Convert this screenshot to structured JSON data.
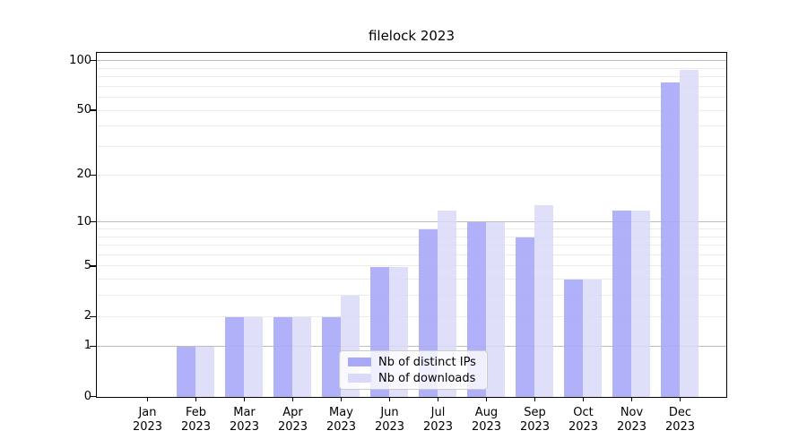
{
  "title": "filelock 2023",
  "chart_data": {
    "type": "bar",
    "title": "filelock 2023",
    "categories": [
      "Jan 2023",
      "Feb 2023",
      "Mar 2023",
      "Apr 2023",
      "May 2023",
      "Jun 2023",
      "Jul 2023",
      "Aug 2023",
      "Sep 2023",
      "Oct 2023",
      "Nov 2023",
      "Dec 2023"
    ],
    "x_tick_line1": [
      "Jan",
      "Feb",
      "Mar",
      "Apr",
      "May",
      "Jun",
      "Jul",
      "Aug",
      "Sep",
      "Oct",
      "Nov",
      "Dec"
    ],
    "x_tick_line2": "2023",
    "series": [
      {
        "name": "Nb of distinct IPs",
        "color": "#a9a9f9",
        "values": [
          0,
          1,
          2,
          2,
          2,
          5,
          9,
          10,
          8,
          4,
          12,
          74
        ]
      },
      {
        "name": "Nb of downloads",
        "color": "#d9d9f9",
        "values": [
          0,
          1,
          2,
          2,
          3,
          5,
          12,
          10,
          13,
          4,
          12,
          88
        ]
      }
    ],
    "xlabel": "",
    "ylabel": "",
    "yscale": "log10(1+v) (symlog-like: 0,1,2,5,10,20,50,100)",
    "y_ticks": [
      0,
      1,
      2,
      5,
      10,
      20,
      50,
      100
    ],
    "y_major_gridlines": [
      1,
      10,
      100
    ],
    "y_minor_gridlines": [
      2,
      3,
      4,
      5,
      6,
      7,
      8,
      9,
      20,
      30,
      40,
      50,
      60,
      70,
      80,
      90
    ],
    "ylim": [
      0,
      110
    ],
    "grid": "horizontal",
    "legend_position": "lower center, inside plot"
  },
  "colors": {
    "bar_distinct_ips": "#a9a9f9",
    "bar_downloads": "#d9d9f9",
    "major_gridline": "#bcbcbc",
    "minor_gridline": "#ebebeb",
    "axis": "#000000",
    "background": "#ffffff"
  }
}
